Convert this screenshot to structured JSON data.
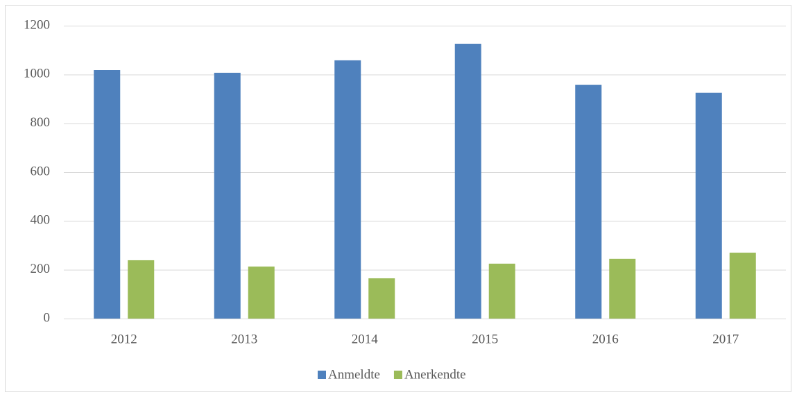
{
  "chart_data": {
    "type": "bar",
    "categories": [
      "2012",
      "2013",
      "2014",
      "2015",
      "2016",
      "2017"
    ],
    "series": [
      {
        "name": "Anmeldte",
        "color": "#4f81bd",
        "values": [
          1018,
          1007,
          1058,
          1126,
          958,
          925
        ]
      },
      {
        "name": "Anerkendte",
        "color": "#9bbb59",
        "values": [
          239,
          213,
          165,
          225,
          245,
          270
        ]
      }
    ],
    "ylim": [
      0,
      1200
    ],
    "yticks": [
      0,
      200,
      400,
      600,
      800,
      1000,
      1200
    ],
    "grid": true,
    "legend": "bottom"
  }
}
